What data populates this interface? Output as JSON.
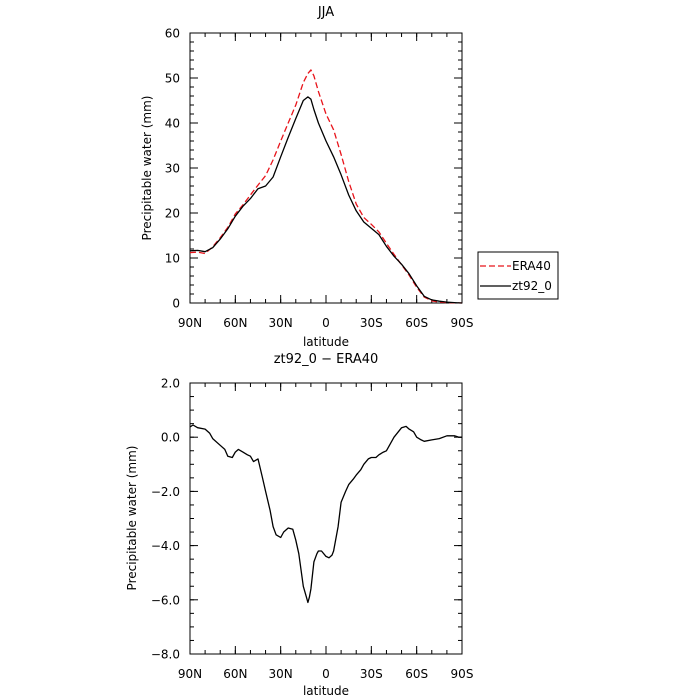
{
  "chart_data": [
    {
      "type": "line",
      "title": "JJA",
      "xlabel": "latitude",
      "ylabel": "Precipitable water  (mm)",
      "xlim": [
        90,
        -90
      ],
      "ylim": [
        0,
        60
      ],
      "xticks": [
        90,
        60,
        30,
        0,
        -30,
        -60,
        -90
      ],
      "xtick_labels": [
        "90N",
        "60N",
        "30N",
        "0",
        "30S",
        "60S",
        "90S"
      ],
      "yticks": [
        0,
        10,
        20,
        30,
        40,
        50,
        60
      ],
      "ytick_labels": [
        "0",
        "10",
        "20",
        "30",
        "40",
        "50",
        "60"
      ],
      "legend_position": "right",
      "series": [
        {
          "name": "ERA40",
          "color": "#e8141b",
          "dash": "dashed",
          "x": [
            90,
            85,
            80,
            75,
            70,
            65,
            60,
            55,
            50,
            45,
            40,
            35,
            30,
            25,
            20,
            15,
            12,
            10,
            8,
            5,
            0,
            -5,
            -10,
            -15,
            -20,
            -25,
            -30,
            -35,
            -40,
            -45,
            -50,
            -55,
            -60,
            -65,
            -70,
            -75,
            -80,
            -85,
            -90
          ],
          "y": [
            11.2,
            11.3,
            11.0,
            12.5,
            14.5,
            16.8,
            19.8,
            21.8,
            24.0,
            26.2,
            28.3,
            31.8,
            36.0,
            40.0,
            44.0,
            49.0,
            51.0,
            51.8,
            50.5,
            47.0,
            42.0,
            38.5,
            33.0,
            27.0,
            22.0,
            19.0,
            17.5,
            15.8,
            13.3,
            10.8,
            8.5,
            6.2,
            3.5,
            1.3,
            0.5,
            0.2,
            0.1,
            0.05,
            0.0
          ]
        },
        {
          "name": "zt92_0",
          "color": "#000000",
          "dash": "solid",
          "x": [
            90,
            85,
            80,
            75,
            70,
            65,
            60,
            55,
            50,
            45,
            40,
            35,
            30,
            25,
            20,
            15,
            12,
            10,
            8,
            5,
            0,
            -5,
            -10,
            -15,
            -20,
            -25,
            -30,
            -35,
            -40,
            -45,
            -50,
            -55,
            -60,
            -65,
            -70,
            -75,
            -80,
            -85,
            -90
          ],
          "y": [
            11.6,
            11.7,
            11.4,
            12.3,
            14.2,
            16.5,
            19.3,
            21.5,
            23.2,
            25.4,
            26.0,
            28.0,
            32.5,
            36.8,
            41.0,
            45.0,
            45.8,
            45.3,
            43.0,
            40.0,
            36.0,
            32.5,
            28.5,
            24.0,
            20.5,
            18.0,
            16.6,
            15.2,
            12.6,
            10.4,
            8.6,
            6.5,
            3.8,
            1.5,
            0.7,
            0.4,
            0.2,
            0.1,
            0.0
          ]
        }
      ]
    },
    {
      "type": "line",
      "title": "zt92_0 − ERA40",
      "xlabel": "latitude",
      "ylabel": "Precipitable water  (mm)",
      "xlim": [
        90,
        -90
      ],
      "ylim": [
        -8,
        2
      ],
      "xticks": [
        90,
        60,
        30,
        0,
        -30,
        -60,
        -90
      ],
      "xtick_labels": [
        "90N",
        "60N",
        "30N",
        "0",
        "30S",
        "60S",
        "90S"
      ],
      "yticks": [
        2,
        0,
        -2,
        -4,
        -6,
        -8
      ],
      "ytick_labels": [
        "2.0",
        "0.0",
        "−2.0",
        "−4.0",
        "−6.0",
        "−8.0"
      ],
      "series": [
        {
          "color": "#000000",
          "dash": "solid",
          "x": [
            90,
            88,
            85,
            80,
            77,
            75,
            70,
            67,
            65,
            62,
            60,
            58,
            55,
            52,
            50,
            48,
            45,
            42,
            40,
            37,
            35,
            33,
            30,
            28,
            25,
            22,
            20,
            18,
            15,
            13,
            12,
            11,
            10,
            8,
            6,
            5,
            3,
            0,
            -2,
            -4,
            -5,
            -8,
            -10,
            -13,
            -15,
            -18,
            -20,
            -23,
            -25,
            -28,
            -30,
            -33,
            -35,
            -38,
            -40,
            -43,
            -45,
            -50,
            -53,
            -55,
            -58,
            -60,
            -63,
            -65,
            -70,
            -75,
            -80,
            -85,
            -88,
            -90
          ],
          "y": [
            0.38,
            0.45,
            0.35,
            0.3,
            0.15,
            -0.05,
            -0.3,
            -0.45,
            -0.7,
            -0.75,
            -0.55,
            -0.45,
            -0.55,
            -0.65,
            -0.7,
            -0.9,
            -0.8,
            -1.5,
            -2.0,
            -2.7,
            -3.3,
            -3.6,
            -3.7,
            -3.5,
            -3.35,
            -3.4,
            -3.8,
            -4.3,
            -5.5,
            -5.9,
            -6.1,
            -5.9,
            -5.6,
            -4.6,
            -4.3,
            -4.2,
            -4.2,
            -4.4,
            -4.45,
            -4.35,
            -4.2,
            -3.3,
            -2.4,
            -2.0,
            -1.75,
            -1.55,
            -1.4,
            -1.2,
            -1.0,
            -0.8,
            -0.75,
            -0.75,
            -0.65,
            -0.55,
            -0.5,
            -0.2,
            0.0,
            0.35,
            0.4,
            0.3,
            0.2,
            0.0,
            -0.1,
            -0.15,
            -0.1,
            -0.05,
            0.05,
            0.05,
            0.0,
            0.0
          ]
        }
      ]
    }
  ]
}
